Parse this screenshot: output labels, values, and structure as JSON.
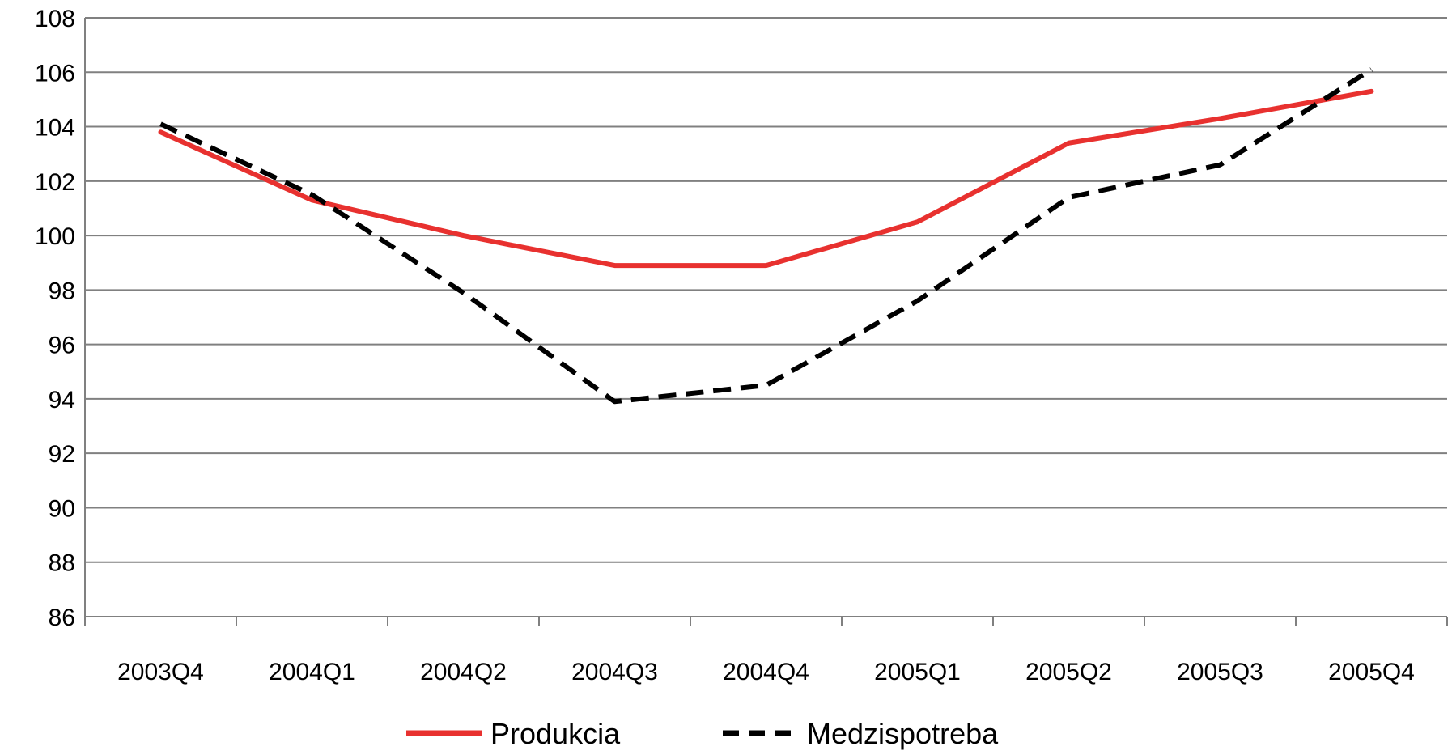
{
  "chart_data": {
    "type": "line",
    "categories": [
      "2003Q4",
      "2004Q1",
      "2004Q2",
      "2004Q3",
      "2004Q4",
      "2005Q1",
      "2005Q2",
      "2005Q3",
      "2005Q4"
    ],
    "series": [
      {
        "name": "Produkcia",
        "values": [
          103.8,
          101.3,
          100.0,
          98.9,
          98.9,
          100.5,
          103.4,
          104.3,
          105.3
        ],
        "color": "#e8312f",
        "dash": "solid"
      },
      {
        "name": "Medzispotreba",
        "values": [
          104.1,
          101.5,
          97.9,
          93.9,
          94.5,
          97.6,
          101.4,
          102.6,
          106.1
        ],
        "color": "#000000",
        "dash": "dashed"
      }
    ],
    "ylim": [
      86,
      108
    ],
    "yticks": [
      86,
      88,
      90,
      92,
      94,
      96,
      98,
      100,
      102,
      104,
      106,
      108
    ],
    "title": "",
    "xlabel": "",
    "ylabel": "",
    "grid": "horizontal",
    "legend_position": "bottom",
    "axis_color": "#808080",
    "grid_color": "#808080"
  }
}
